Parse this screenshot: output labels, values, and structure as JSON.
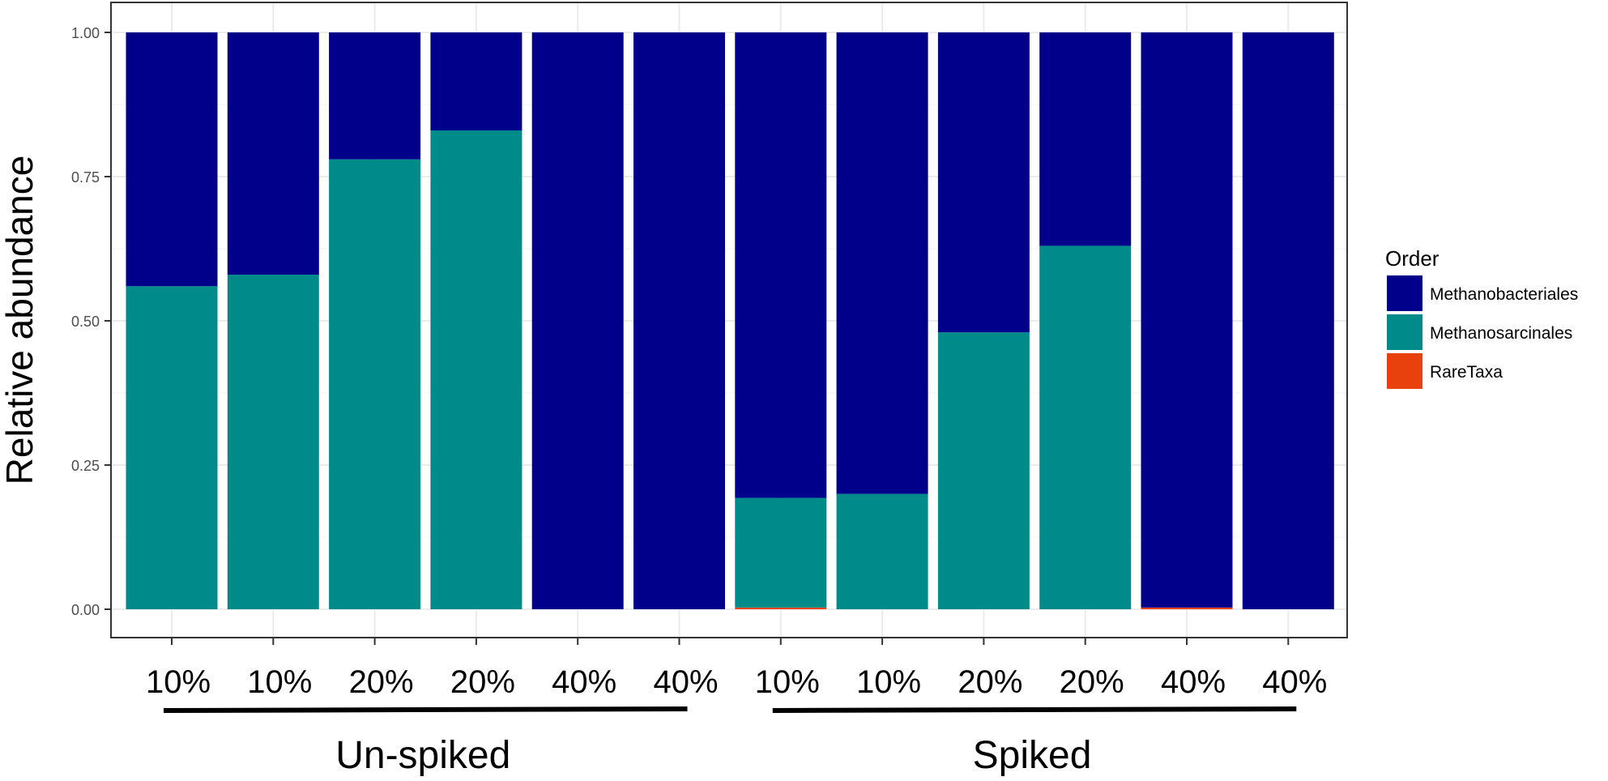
{
  "chart_data": {
    "type": "bar",
    "stacked": true,
    "ylabel": "Relative abundance",
    "ylim": [
      0,
      1
    ],
    "yticks": [
      "0.00",
      "0.25",
      "0.50",
      "0.75",
      "1.00"
    ],
    "categories": [
      "10%",
      "10%",
      "20%",
      "20%",
      "40%",
      "40%",
      "10%",
      "10%",
      "20%",
      "20%",
      "40%",
      "40%"
    ],
    "groups": [
      {
        "label": "Un-spiked",
        "from": 0,
        "to": 5
      },
      {
        "label": "Spiked",
        "from": 6,
        "to": 11
      }
    ],
    "legend": {
      "title": "Order",
      "position": "right"
    },
    "grid": true,
    "series": [
      {
        "name": "Methanobacteriales",
        "color": "#00008B",
        "values": [
          0.44,
          0.42,
          0.22,
          0.17,
          1.0,
          1.0,
          0.807,
          0.8,
          0.52,
          0.37,
          0.997,
          1.0
        ]
      },
      {
        "name": "Methanosarcinales",
        "color": "#008B8B",
        "values": [
          0.56,
          0.58,
          0.78,
          0.83,
          0.0,
          0.0,
          0.19,
          0.2,
          0.48,
          0.63,
          0.0,
          0.0
        ]
      },
      {
        "name": "RareTaxa",
        "color": "#E8410E",
        "values": [
          0.0,
          0.0,
          0.0,
          0.0,
          0.0,
          0.0,
          0.003,
          0.0,
          0.0,
          0.0,
          0.003,
          0.0
        ]
      }
    ]
  }
}
